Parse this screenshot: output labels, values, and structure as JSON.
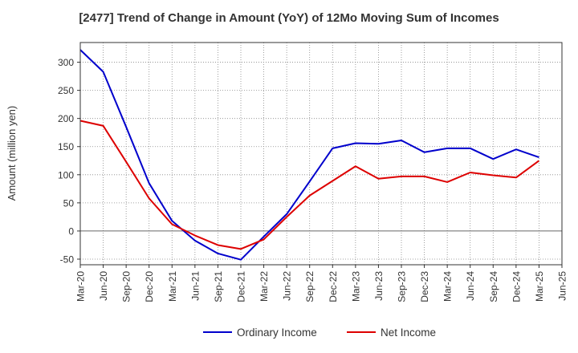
{
  "chart_data": {
    "type": "line",
    "title": "[2477]  Trend of Change in Amount (YoY) of 12Mo Moving Sum of Incomes",
    "ylabel": "Amount (million yen)",
    "xlabel": "",
    "ylim": [
      -60,
      335
    ],
    "yticks": [
      -50,
      0,
      50,
      100,
      150,
      200,
      250,
      300
    ],
    "grid": true,
    "legend_position": "bottom-center",
    "x": [
      "Mar-20",
      "Jun-20",
      "Sep-20",
      "Dec-20",
      "Mar-21",
      "Jun-21",
      "Sep-21",
      "Dec-21",
      "Mar-22",
      "Jun-22",
      "Sep-22",
      "Dec-22",
      "Mar-23",
      "Jun-23",
      "Sep-23",
      "Dec-23",
      "Mar-24",
      "Jun-24",
      "Sep-24",
      "Dec-24",
      "Mar-25",
      "Jun-25"
    ],
    "series": [
      {
        "name": "Ordinary Income",
        "color": "#0000cc",
        "values": [
          322,
          283,
          185,
          85,
          18,
          -17,
          -40,
          -51,
          -10,
          30,
          88,
          147,
          156,
          155,
          161,
          140,
          147,
          147,
          128,
          145,
          131,
          null
        ]
      },
      {
        "name": "Net Income",
        "color": "#dd0000",
        "values": [
          196,
          187,
          123,
          58,
          12,
          -8,
          -25,
          -32,
          -15,
          25,
          63,
          89,
          115,
          93,
          97,
          97,
          87,
          104,
          99,
          95,
          125,
          null
        ]
      }
    ]
  }
}
